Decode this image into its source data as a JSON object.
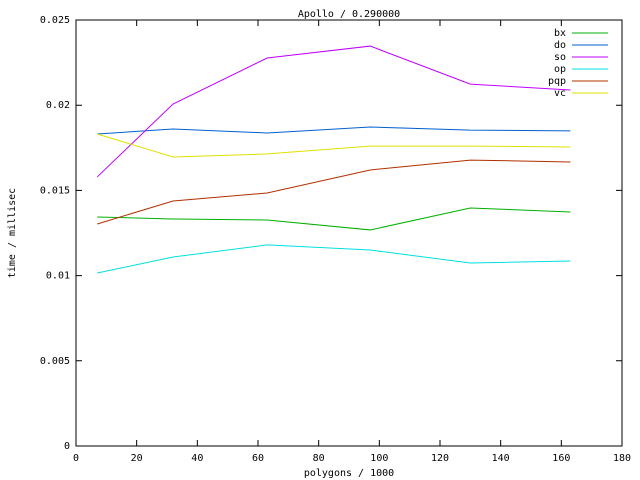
{
  "chart_data": {
    "type": "line",
    "title": "Apollo / 0.290000",
    "x_label": "polygons / 1000",
    "y_label": "time / millisec",
    "x": [
      7,
      32,
      63,
      97,
      130,
      163
    ],
    "series": [
      {
        "name": "bx",
        "color": "#00b000",
        "values": [
          0.01344,
          0.01332,
          0.01326,
          0.01268,
          0.01397,
          0.01373
        ]
      },
      {
        "name": "do",
        "color": "#0060d0",
        "values": [
          0.01831,
          0.0186,
          0.01837,
          0.01872,
          0.01854,
          0.01849
        ]
      },
      {
        "name": "so",
        "color": "#c000ff",
        "values": [
          0.01579,
          0.02007,
          0.02277,
          0.02347,
          0.02124,
          0.02089
        ]
      },
      {
        "name": "op",
        "color": "#00e0e0",
        "values": [
          0.01015,
          0.01109,
          0.0118,
          0.0115,
          0.01074,
          0.01086
        ]
      },
      {
        "name": "pqp",
        "color": "#b03000",
        "values": [
          0.01303,
          0.01438,
          0.01485,
          0.0162,
          0.01678,
          0.01667
        ]
      },
      {
        "name": "vc",
        "color": "#e0e000",
        "values": [
          0.01831,
          0.01696,
          0.01714,
          0.0176,
          0.0176,
          0.01755
        ]
      }
    ],
    "xlim": [
      0,
      180
    ],
    "xticks": [
      0,
      20,
      40,
      60,
      80,
      100,
      120,
      140,
      160,
      180
    ],
    "ylim": [
      0,
      0.025
    ],
    "yticks": [
      0,
      0.005,
      0.01,
      0.015,
      0.02,
      0.025
    ],
    "legend": "top-right",
    "grid": false
  }
}
